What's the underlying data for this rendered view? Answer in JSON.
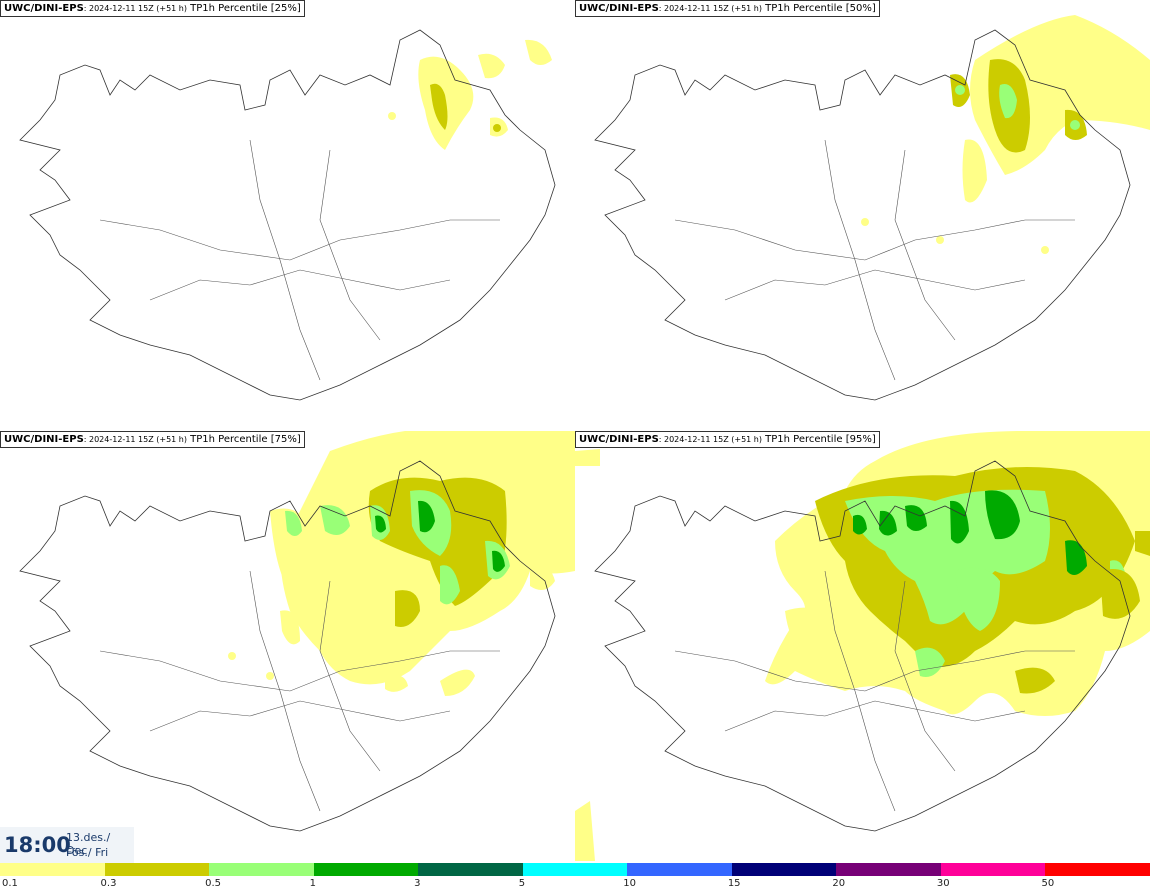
{
  "panels": [
    {
      "model": "UWC/DINI-EPS",
      "run": ": 2024-12-11 15Z (+51 h)",
      "product": " TP1h Percentile [25%]",
      "percentile": 25
    },
    {
      "model": "UWC/DINI-EPS",
      "run": ": 2024-12-11 15Z (+51 h)",
      "product": " TP1h Percentile [50%]",
      "percentile": 50
    },
    {
      "model": "UWC/DINI-EPS",
      "run": ": 2024-12-11 15Z (+51 h)",
      "product": " TP1h Percentile [75%]",
      "percentile": 75
    },
    {
      "model": "UWC/DINI-EPS",
      "run": ": 2024-12-11 15Z (+51 h)",
      "product": " TP1h Percentile [95%]",
      "percentile": 95
    }
  ],
  "valid_time": {
    "time": "18:00",
    "date_line1": "13.des./ Dec",
    "date_line2": "Fös./ Fri"
  },
  "legend": {
    "ticks": [
      "0.1",
      "0.3",
      "0.5",
      "1",
      "3",
      "5",
      "10",
      "15",
      "20",
      "30",
      "50"
    ],
    "colors": [
      "#ffff88",
      "#cccc00",
      "#99ff77",
      "#00aa00",
      "#006644",
      "#00ffff",
      "#3366ff",
      "#000077",
      "#770077",
      "#ff0099",
      "#ff0000"
    ]
  }
}
